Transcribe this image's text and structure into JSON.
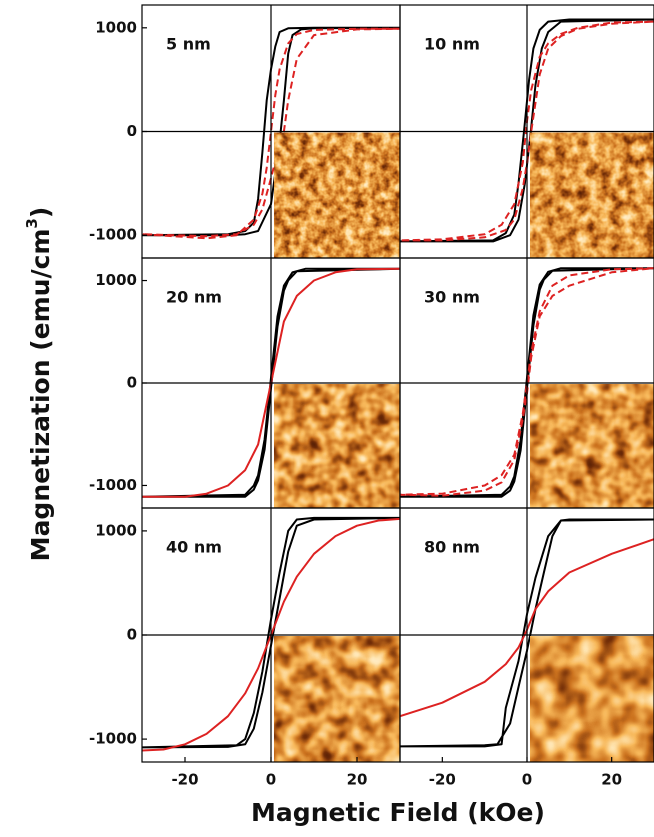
{
  "figure": {
    "x_label": "Magnetic Field (kOe)",
    "y_label": [
      "Magnetization (emu/cm",
      "3",
      ")"
    ]
  },
  "chart_data": [
    {
      "type": "line",
      "label": "5 nm",
      "xlim": [
        -30,
        30
      ],
      "ylim": [
        -1220,
        1220
      ],
      "yticks": [
        -1000,
        0,
        1000
      ],
      "series": [
        {
          "color": "#000000",
          "dash": false,
          "x": [
            30,
            10,
            4,
            2,
            1,
            0,
            -1,
            -2,
            -3,
            -4,
            -6,
            -10,
            -30,
            -10,
            -6,
            -3,
            0,
            1,
            2,
            3,
            4,
            5,
            7,
            10,
            30
          ],
          "values": [
            1000,
            1000,
            995,
            960,
            820,
            600,
            300,
            -200,
            -650,
            -880,
            -960,
            -990,
            -1000,
            -1000,
            -990,
            -960,
            -700,
            -400,
            -100,
            300,
            750,
            930,
            985,
            995,
            1000
          ]
        },
        {
          "color": "#dd2222",
          "dash": true,
          "x": [
            30,
            20,
            10,
            6,
            4,
            2,
            1,
            0,
            -1,
            -2,
            -4,
            -8,
            -15,
            -30,
            -15,
            -8,
            -4,
            -2,
            0,
            2,
            3,
            4,
            6,
            10,
            20,
            30
          ],
          "values": [
            990,
            990,
            980,
            940,
            850,
            600,
            350,
            0,
            -350,
            -600,
            -850,
            -1000,
            -1030,
            -990,
            -1010,
            -990,
            -900,
            -750,
            -450,
            -120,
            0,
            300,
            700,
            930,
            985,
            990
          ]
        }
      ]
    },
    {
      "type": "line",
      "label": "10 nm",
      "xlim": [
        -30,
        30
      ],
      "ylim": [
        -1220,
        1220
      ],
      "series": [
        {
          "color": "#000000",
          "dash": false,
          "x": [
            30,
            10,
            5,
            3,
            1.5,
            0.5,
            -0.7,
            -2,
            -3,
            -5,
            -8,
            -30,
            -8,
            -4,
            -2,
            -0.5,
            0.9,
            2,
            3.5,
            5,
            8,
            30
          ],
          "values": [
            1080,
            1080,
            1060,
            980,
            800,
            500,
            0,
            -500,
            -800,
            -980,
            -1050,
            -1060,
            -1060,
            -1000,
            -850,
            -500,
            0,
            450,
            800,
            960,
            1060,
            1080
          ]
        },
        {
          "color": "#dd2222",
          "dash": true,
          "x": [
            30,
            20,
            12,
            8,
            5,
            3,
            1,
            0,
            -1,
            -3,
            -6,
            -10,
            -20,
            -30,
            -20,
            -10,
            -5,
            -3,
            -1,
            0,
            1,
            3,
            5,
            8,
            12,
            20,
            30
          ],
          "values": [
            1060,
            1050,
            1000,
            940,
            850,
            720,
            400,
            100,
            -300,
            -700,
            -900,
            -990,
            -1040,
            -1050,
            -1050,
            -1020,
            -950,
            -850,
            -550,
            -300,
            0,
            550,
            800,
            920,
            990,
            1040,
            1060
          ]
        }
      ]
    },
    {
      "type": "line",
      "label": "20 nm",
      "xlim": [
        -30,
        30
      ],
      "ylim": [
        -1220,
        1220
      ],
      "yticks": [
        -1000,
        0,
        1000
      ],
      "series": [
        {
          "color": "#000000",
          "dash": false,
          "x": [
            30,
            8,
            5,
            3,
            1.5,
            0,
            -1.5,
            -3,
            -4,
            -6,
            -30,
            -6,
            -4,
            -3,
            -1.5,
            0,
            1.5,
            3,
            4,
            6,
            30
          ],
          "values": [
            1115,
            1115,
            1080,
            950,
            650,
            50,
            -550,
            -900,
            -1000,
            -1090,
            -1110,
            -1110,
            -1040,
            -950,
            -650,
            -50,
            550,
            900,
            1000,
            1090,
            1115
          ]
        },
        {
          "color": "#dd2222",
          "dash": false,
          "x": [
            -30,
            -20,
            -15,
            -10,
            -6,
            -3,
            -1,
            0,
            1,
            3,
            6,
            10,
            15,
            20,
            30
          ],
          "values": [
            -1110,
            -1110,
            -1080,
            -1000,
            -850,
            -600,
            -200,
            0,
            200,
            600,
            850,
            1000,
            1080,
            1110,
            1115
          ]
        }
      ]
    },
    {
      "type": "line",
      "label": "30 nm",
      "xlim": [
        -30,
        30
      ],
      "ylim": [
        -1220,
        1220
      ],
      "series": [
        {
          "color": "#000000",
          "dash": false,
          "x": [
            30,
            8,
            5,
            3,
            1.5,
            0,
            -1.5,
            -3,
            -4,
            -6,
            -30,
            -6,
            -4,
            -3,
            -1.5,
            0,
            1.5,
            3,
            4,
            6,
            30
          ],
          "values": [
            1120,
            1120,
            1085,
            960,
            660,
            50,
            -560,
            -910,
            -1010,
            -1090,
            -1110,
            -1110,
            -1050,
            -960,
            -660,
            -50,
            560,
            910,
            1010,
            1095,
            1120
          ]
        },
        {
          "color": "#dd2222",
          "dash": true,
          "x": [
            30,
            20,
            10,
            6,
            3,
            1,
            0,
            -1,
            -3,
            -6,
            -10,
            -20,
            -30,
            -20,
            -10,
            -6,
            -3,
            -1,
            0,
            1,
            3,
            6,
            10,
            20,
            30
          ],
          "values": [
            1120,
            1110,
            1050,
            950,
            700,
            300,
            0,
            -300,
            -700,
            -900,
            -1000,
            -1080,
            -1090,
            -1100,
            -1050,
            -970,
            -750,
            -350,
            -100,
            250,
            650,
            850,
            950,
            1080,
            1120
          ]
        }
      ]
    },
    {
      "type": "line",
      "label": "40 nm",
      "xlim": [
        -30,
        30
      ],
      "ylim": [
        -1220,
        1220
      ],
      "yticks": [
        -1000,
        0,
        1000
      ],
      "xticks": [
        -20,
        0,
        20
      ],
      "series": [
        {
          "color": "#000000",
          "dash": false,
          "x": [
            30,
            10,
            6,
            4,
            2,
            0,
            -2,
            -4,
            -6,
            -8,
            -30,
            -10,
            -6,
            -4,
            -2,
            0,
            2,
            4,
            6,
            10,
            30
          ],
          "values": [
            1125,
            1125,
            1110,
            1000,
            600,
            150,
            -350,
            -750,
            -1000,
            -1060,
            -1080,
            -1075,
            -1050,
            -900,
            -550,
            -100,
            350,
            800,
            1050,
            1110,
            1125
          ]
        },
        {
          "color": "#dd2222",
          "dash": false,
          "x": [
            -30,
            -25,
            -20,
            -15,
            -10,
            -6,
            -3,
            0,
            3,
            6,
            10,
            15,
            20,
            25,
            30
          ],
          "values": [
            -1110,
            -1100,
            -1050,
            -950,
            -780,
            -560,
            -320,
            0,
            320,
            560,
            780,
            950,
            1050,
            1100,
            1115
          ]
        }
      ]
    },
    {
      "type": "line",
      "label": "80 nm",
      "xlim": [
        -30,
        30
      ],
      "ylim": [
        -1220,
        1220
      ],
      "xticks": [
        -20,
        0,
        20
      ],
      "series": [
        {
          "color": "#000000",
          "dash": false,
          "x": [
            30,
            10,
            8,
            5,
            2,
            0,
            -2,
            -5,
            -6,
            -10,
            -30,
            -10,
            -7,
            -4,
            -2,
            0,
            2,
            4,
            6,
            8,
            30
          ],
          "values": [
            1110,
            1110,
            1100,
            950,
            550,
            200,
            -250,
            -700,
            -1050,
            -1070,
            -1070,
            -1060,
            -1050,
            -850,
            -500,
            -150,
            250,
            600,
            950,
            1100,
            1110
          ]
        },
        {
          "color": "#dd2222",
          "dash": false,
          "x": [
            -30,
            -20,
            -10,
            -5,
            -2,
            0,
            2,
            5,
            10,
            20,
            30
          ],
          "values": [
            -780,
            -650,
            -450,
            -280,
            -120,
            50,
            250,
            420,
            600,
            780,
            920
          ]
        }
      ]
    }
  ]
}
